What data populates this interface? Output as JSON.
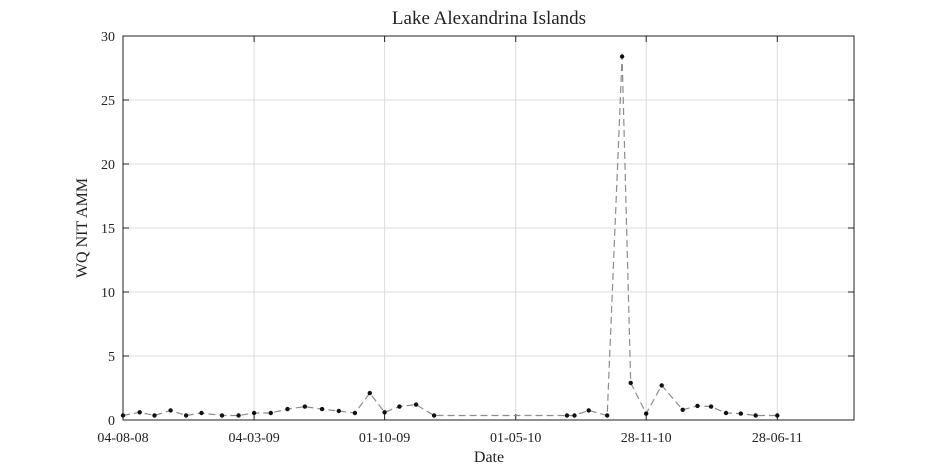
{
  "chart_data": {
    "type": "line",
    "title": "Lake Alexandrina Islands",
    "xlabel": "Date",
    "ylabel": "WQ NIT AMM",
    "xlim": [
      "2008-08-04",
      "2011-10-30"
    ],
    "ylim": [
      0,
      30
    ],
    "x_ticks": [
      {
        "date": "2008-08-04",
        "label": "04-08-08"
      },
      {
        "date": "2009-03-04",
        "label": "04-03-09"
      },
      {
        "date": "2009-10-01",
        "label": "01-10-09"
      },
      {
        "date": "2010-05-01",
        "label": "01-05-10"
      },
      {
        "date": "2010-11-28",
        "label": "28-11-10"
      },
      {
        "date": "2011-06-28",
        "label": "28-06-11"
      }
    ],
    "y_ticks": [
      0,
      5,
      10,
      15,
      20,
      25,
      30
    ],
    "grid": true,
    "colors": {
      "line": "#8c8c8c",
      "marker": "#111111"
    },
    "series": [
      {
        "x": [
          "2008-08-04",
          "2008-08-31",
          "2008-09-24",
          "2008-10-20",
          "2008-11-14",
          "2008-12-09",
          "2009-01-11",
          "2009-02-07",
          "2009-03-04",
          "2009-03-31",
          "2009-04-27",
          "2009-05-25",
          "2009-06-22",
          "2009-07-19",
          "2009-08-14",
          "2009-09-07",
          "2009-10-01",
          "2009-10-25",
          "2009-11-21",
          "2009-12-20",
          "2010-07-23",
          "2010-08-04",
          "2010-08-27",
          "2010-09-26",
          "2010-10-20",
          "2010-11-03",
          "2010-11-28",
          "2010-12-23",
          "2011-01-26",
          "2011-02-19",
          "2011-03-13",
          "2011-04-06",
          "2011-04-30",
          "2011-05-24",
          "2011-06-28"
        ],
        "y": [
          0.35,
          0.6,
          0.35,
          0.75,
          0.35,
          0.55,
          0.35,
          0.35,
          0.55,
          0.55,
          0.85,
          1.05,
          0.85,
          0.7,
          0.55,
          2.1,
          0.6,
          1.05,
          1.2,
          0.35,
          0.35,
          0.35,
          0.75,
          0.35,
          28.4,
          2.9,
          0.5,
          2.7,
          0.8,
          1.1,
          1.05,
          0.55,
          0.5,
          0.35,
          0.35
        ]
      }
    ]
  }
}
